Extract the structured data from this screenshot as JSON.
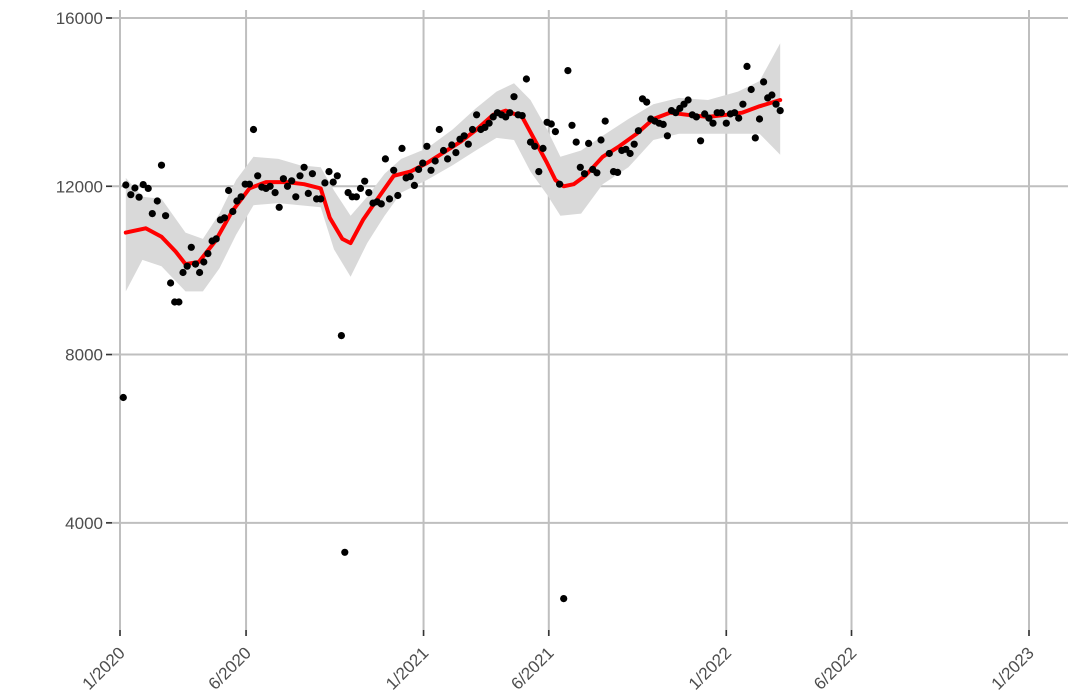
{
  "chart_data": {
    "type": "scatter",
    "title": "",
    "xlabel": "",
    "ylabel": "",
    "grid": true,
    "ylim": [
      1500,
      16000
    ],
    "xlim": [
      "2020-01-01",
      "2023-01-01"
    ],
    "y_ticks": [
      {
        "value": 4000,
        "label": "4000"
      },
      {
        "value": 8000,
        "label": "8000"
      },
      {
        "value": 12000,
        "label": "12000"
      },
      {
        "value": 16000,
        "label": "16000"
      }
    ],
    "x_ticks": [
      {
        "value": "2020-01-01",
        "label": "1/2020"
      },
      {
        "value": "2020-06-01",
        "label": "6/2020"
      },
      {
        "value": "2021-01-01",
        "label": "1/2021"
      },
      {
        "value": "2021-06-01",
        "label": "6/2021"
      },
      {
        "value": "2022-01-01",
        "label": "1/2022"
      },
      {
        "value": "2022-06-01",
        "label": "6/2022"
      },
      {
        "value": "2023-01-01",
        "label": "1/2023"
      }
    ],
    "colors": {
      "points": "#000000",
      "smooth": "#ff0000",
      "band": "#d9d9d9",
      "grid": "#bfbfbf"
    },
    "series": [
      {
        "type": "scatter",
        "points": [
          [
            "2020-01-05",
            6980
          ],
          [
            "2020-01-08",
            12030
          ],
          [
            "2020-01-14",
            11800
          ],
          [
            "2020-01-19",
            11960
          ],
          [
            "2020-01-24",
            11740
          ],
          [
            "2020-01-29",
            12040
          ],
          [
            "2020-02-04",
            11950
          ],
          [
            "2020-02-09",
            11350
          ],
          [
            "2020-02-15",
            11650
          ],
          [
            "2020-02-20",
            12500
          ],
          [
            "2020-02-25",
            11300
          ],
          [
            "2020-03-02",
            9700
          ],
          [
            "2020-03-07",
            9250
          ],
          [
            "2020-03-12",
            9250
          ],
          [
            "2020-03-17",
            9950
          ],
          [
            "2020-03-22",
            10100
          ],
          [
            "2020-03-27",
            10550
          ],
          [
            "2020-04-01",
            10150
          ],
          [
            "2020-04-06",
            9950
          ],
          [
            "2020-04-11",
            10200
          ],
          [
            "2020-04-16",
            10400
          ],
          [
            "2020-04-21",
            10700
          ],
          [
            "2020-04-26",
            10750
          ],
          [
            "2020-05-01",
            11200
          ],
          [
            "2020-05-06",
            11250
          ],
          [
            "2020-05-11",
            11900
          ],
          [
            "2020-05-16",
            11400
          ],
          [
            "2020-05-21",
            11650
          ],
          [
            "2020-05-26",
            11750
          ],
          [
            "2020-05-31",
            12050
          ],
          [
            "2020-06-05",
            12050
          ],
          [
            "2020-06-10",
            13350
          ],
          [
            "2020-06-15",
            12250
          ],
          [
            "2020-06-20",
            11980
          ],
          [
            "2020-06-25",
            11950
          ],
          [
            "2020-06-30",
            12000
          ],
          [
            "2020-07-06",
            11850
          ],
          [
            "2020-07-11",
            11500
          ],
          [
            "2020-07-16",
            12180
          ],
          [
            "2020-07-21",
            12000
          ],
          [
            "2020-07-26",
            12130
          ],
          [
            "2020-07-31",
            11750
          ],
          [
            "2020-08-05",
            12250
          ],
          [
            "2020-08-10",
            12450
          ],
          [
            "2020-08-15",
            11830
          ],
          [
            "2020-08-20",
            12300
          ],
          [
            "2020-08-25",
            11700
          ],
          [
            "2020-08-30",
            11700
          ],
          [
            "2020-09-04",
            12080
          ],
          [
            "2020-09-09",
            12350
          ],
          [
            "2020-09-14",
            12100
          ],
          [
            "2020-09-19",
            12250
          ],
          [
            "2020-09-24",
            8450
          ],
          [
            "2020-09-28",
            3300
          ],
          [
            "2020-10-02",
            11850
          ],
          [
            "2020-10-07",
            11750
          ],
          [
            "2020-10-12",
            11750
          ],
          [
            "2020-10-17",
            11950
          ],
          [
            "2020-10-22",
            12120
          ],
          [
            "2020-10-27",
            11850
          ],
          [
            "2020-11-01",
            11600
          ],
          [
            "2020-11-06",
            11630
          ],
          [
            "2020-11-11",
            11580
          ],
          [
            "2020-11-16",
            12650
          ],
          [
            "2020-11-21",
            11700
          ],
          [
            "2020-11-26",
            12380
          ],
          [
            "2020-12-01",
            11780
          ],
          [
            "2020-12-06",
            12900
          ],
          [
            "2020-12-11",
            12200
          ],
          [
            "2020-12-16",
            12230
          ],
          [
            "2020-12-21",
            12020
          ],
          [
            "2020-12-26",
            12400
          ],
          [
            "2020-12-31",
            12550
          ],
          [
            "2021-01-05",
            12950
          ],
          [
            "2021-01-10",
            12380
          ],
          [
            "2021-01-15",
            12600
          ],
          [
            "2021-01-20",
            13350
          ],
          [
            "2021-01-25",
            12850
          ],
          [
            "2021-01-30",
            12650
          ],
          [
            "2021-02-04",
            12980
          ],
          [
            "2021-02-09",
            12800
          ],
          [
            "2021-02-14",
            13120
          ],
          [
            "2021-02-19",
            13200
          ],
          [
            "2021-02-24",
            13000
          ],
          [
            "2021-03-01",
            13350
          ],
          [
            "2021-03-06",
            13700
          ],
          [
            "2021-03-11",
            13350
          ],
          [
            "2021-03-16",
            13400
          ],
          [
            "2021-03-21",
            13500
          ],
          [
            "2021-03-26",
            13650
          ],
          [
            "2021-03-31",
            13750
          ],
          [
            "2021-04-05",
            13700
          ],
          [
            "2021-04-10",
            13650
          ],
          [
            "2021-04-15",
            13750
          ],
          [
            "2021-04-20",
            14130
          ],
          [
            "2021-04-25",
            13700
          ],
          [
            "2021-04-30",
            13680
          ],
          [
            "2021-05-05",
            14550
          ],
          [
            "2021-05-10",
            13050
          ],
          [
            "2021-05-15",
            12950
          ],
          [
            "2021-05-20",
            12350
          ],
          [
            "2021-05-25",
            12900
          ],
          [
            "2021-05-30",
            13520
          ],
          [
            "2021-06-04",
            13480
          ],
          [
            "2021-06-09",
            13300
          ],
          [
            "2021-06-14",
            12050
          ],
          [
            "2021-06-19",
            2200
          ],
          [
            "2021-06-24",
            14750
          ],
          [
            "2021-06-29",
            13450
          ],
          [
            "2021-07-04",
            13050
          ],
          [
            "2021-07-09",
            12450
          ],
          [
            "2021-07-14",
            12300
          ],
          [
            "2021-07-19",
            13020
          ],
          [
            "2021-07-24",
            12400
          ],
          [
            "2021-07-29",
            12320
          ],
          [
            "2021-08-03",
            13100
          ],
          [
            "2021-08-08",
            13550
          ],
          [
            "2021-08-13",
            12780
          ],
          [
            "2021-08-18",
            12350
          ],
          [
            "2021-08-23",
            12330
          ],
          [
            "2021-08-28",
            12850
          ],
          [
            "2021-09-02",
            12880
          ],
          [
            "2021-09-07",
            12780
          ],
          [
            "2021-09-12",
            13000
          ],
          [
            "2021-09-17",
            13320
          ],
          [
            "2021-09-22",
            14080
          ],
          [
            "2021-09-27",
            14000
          ],
          [
            "2021-10-02",
            13600
          ],
          [
            "2021-10-07",
            13550
          ],
          [
            "2021-10-12",
            13500
          ],
          [
            "2021-10-17",
            13470
          ],
          [
            "2021-10-22",
            13200
          ],
          [
            "2021-10-27",
            13800
          ],
          [
            "2021-11-01",
            13750
          ],
          [
            "2021-11-06",
            13850
          ],
          [
            "2021-11-11",
            13950
          ],
          [
            "2021-11-16",
            14050
          ],
          [
            "2021-11-21",
            13700
          ],
          [
            "2021-11-26",
            13650
          ],
          [
            "2021-12-01",
            13080
          ],
          [
            "2021-12-06",
            13720
          ],
          [
            "2021-12-11",
            13620
          ],
          [
            "2021-12-16",
            13500
          ],
          [
            "2021-12-21",
            13750
          ],
          [
            "2021-12-26",
            13750
          ],
          [
            "2022-01-01",
            13500
          ],
          [
            "2022-01-06",
            13720
          ],
          [
            "2022-01-11",
            13750
          ],
          [
            "2022-01-16",
            13620
          ],
          [
            "2022-01-21",
            13950
          ],
          [
            "2022-01-26",
            14850
          ],
          [
            "2022-01-31",
            14300
          ],
          [
            "2022-02-05",
            13150
          ],
          [
            "2022-02-10",
            13600
          ],
          [
            "2022-02-15",
            14480
          ],
          [
            "2022-02-20",
            14100
          ],
          [
            "2022-02-25",
            14170
          ],
          [
            "2022-03-02",
            13950
          ],
          [
            "2022-03-07",
            13800
          ]
        ]
      },
      {
        "type": "line",
        "points": [
          [
            "2020-01-08",
            10900
          ],
          [
            "2020-02-01",
            11000
          ],
          [
            "2020-02-20",
            10800
          ],
          [
            "2020-03-08",
            10450
          ],
          [
            "2020-03-20",
            10150
          ],
          [
            "2020-04-05",
            10200
          ],
          [
            "2020-04-25",
            10700
          ],
          [
            "2020-05-15",
            11400
          ],
          [
            "2020-06-05",
            11950
          ],
          [
            "2020-06-25",
            12100
          ],
          [
            "2020-07-20",
            12100
          ],
          [
            "2020-08-10",
            12050
          ],
          [
            "2020-08-30",
            11950
          ],
          [
            "2020-09-10",
            11250
          ],
          [
            "2020-09-25",
            10750
          ],
          [
            "2020-10-05",
            10650
          ],
          [
            "2020-10-20",
            11200
          ],
          [
            "2020-11-10",
            11800
          ],
          [
            "2020-11-26",
            12250
          ],
          [
            "2020-12-16",
            12350
          ],
          [
            "2021-01-05",
            12550
          ],
          [
            "2021-01-25",
            12800
          ],
          [
            "2021-02-14",
            13050
          ],
          [
            "2021-03-06",
            13350
          ],
          [
            "2021-03-26",
            13700
          ],
          [
            "2021-04-10",
            13800
          ],
          [
            "2021-04-30",
            13650
          ],
          [
            "2021-05-15",
            13100
          ],
          [
            "2021-05-30",
            12550
          ],
          [
            "2021-06-09",
            12150
          ],
          [
            "2021-06-19",
            12000
          ],
          [
            "2021-07-01",
            12050
          ],
          [
            "2021-07-15",
            12250
          ],
          [
            "2021-08-05",
            12700
          ],
          [
            "2021-08-25",
            12950
          ],
          [
            "2021-09-15",
            13250
          ],
          [
            "2021-10-05",
            13600
          ],
          [
            "2021-10-25",
            13750
          ],
          [
            "2021-11-15",
            13700
          ],
          [
            "2021-12-10",
            13650
          ],
          [
            "2022-01-01",
            13700
          ],
          [
            "2022-01-20",
            13750
          ],
          [
            "2022-02-10",
            13900
          ],
          [
            "2022-03-07",
            14050
          ]
        ]
      },
      {
        "type": "band",
        "upper": [
          [
            "2020-01-08",
            12200
          ],
          [
            "2020-01-28",
            11750
          ],
          [
            "2020-02-20",
            11700
          ],
          [
            "2020-03-20",
            10900
          ],
          [
            "2020-04-10",
            10750
          ],
          [
            "2020-04-30",
            11350
          ],
          [
            "2020-05-20",
            12150
          ],
          [
            "2020-06-10",
            12700
          ],
          [
            "2020-07-10",
            12650
          ],
          [
            "2020-08-05",
            12500
          ],
          [
            "2020-08-30",
            12450
          ],
          [
            "2020-09-15",
            11900
          ],
          [
            "2020-10-05",
            11300
          ],
          [
            "2020-10-25",
            11750
          ],
          [
            "2020-11-15",
            12300
          ],
          [
            "2020-12-05",
            12650
          ],
          [
            "2021-01-05",
            12900
          ],
          [
            "2021-02-05",
            13350
          ],
          [
            "2021-03-05",
            13850
          ],
          [
            "2021-03-30",
            14250
          ],
          [
            "2021-04-20",
            14450
          ],
          [
            "2021-05-10",
            14050
          ],
          [
            "2021-05-30",
            13350
          ],
          [
            "2021-06-15",
            12700
          ],
          [
            "2021-07-10",
            12850
          ],
          [
            "2021-08-05",
            13200
          ],
          [
            "2021-09-05",
            13600
          ],
          [
            "2021-10-05",
            13950
          ],
          [
            "2021-11-05",
            14100
          ],
          [
            "2021-12-10",
            14050
          ],
          [
            "2022-01-15",
            14250
          ],
          [
            "2022-02-10",
            14500
          ],
          [
            "2022-03-07",
            15400
          ]
        ],
        "lower": [
          [
            "2020-01-08",
            9500
          ],
          [
            "2020-01-28",
            10250
          ],
          [
            "2020-02-20",
            10100
          ],
          [
            "2020-03-20",
            9500
          ],
          [
            "2020-04-10",
            9500
          ],
          [
            "2020-04-30",
            10050
          ],
          [
            "2020-05-20",
            10850
          ],
          [
            "2020-06-10",
            11550
          ],
          [
            "2020-07-10",
            11600
          ],
          [
            "2020-08-05",
            11550
          ],
          [
            "2020-08-30",
            11500
          ],
          [
            "2020-09-15",
            10500
          ],
          [
            "2020-10-05",
            9850
          ],
          [
            "2020-10-25",
            10650
          ],
          [
            "2020-11-15",
            11300
          ],
          [
            "2020-12-05",
            11850
          ],
          [
            "2021-01-05",
            12150
          ],
          [
            "2021-02-05",
            12500
          ],
          [
            "2021-03-05",
            12850
          ],
          [
            "2021-03-30",
            13150
          ],
          [
            "2021-04-20",
            13100
          ],
          [
            "2021-05-10",
            12350
          ],
          [
            "2021-05-30",
            11800
          ],
          [
            "2021-06-15",
            11300
          ],
          [
            "2021-07-10",
            11350
          ],
          [
            "2021-08-05",
            12050
          ],
          [
            "2021-09-05",
            12450
          ],
          [
            "2021-10-05",
            13100
          ],
          [
            "2021-11-05",
            13250
          ],
          [
            "2021-12-10",
            13250
          ],
          [
            "2022-01-15",
            13250
          ],
          [
            "2022-02-10",
            13250
          ],
          [
            "2022-03-07",
            12750
          ]
        ]
      }
    ]
  }
}
